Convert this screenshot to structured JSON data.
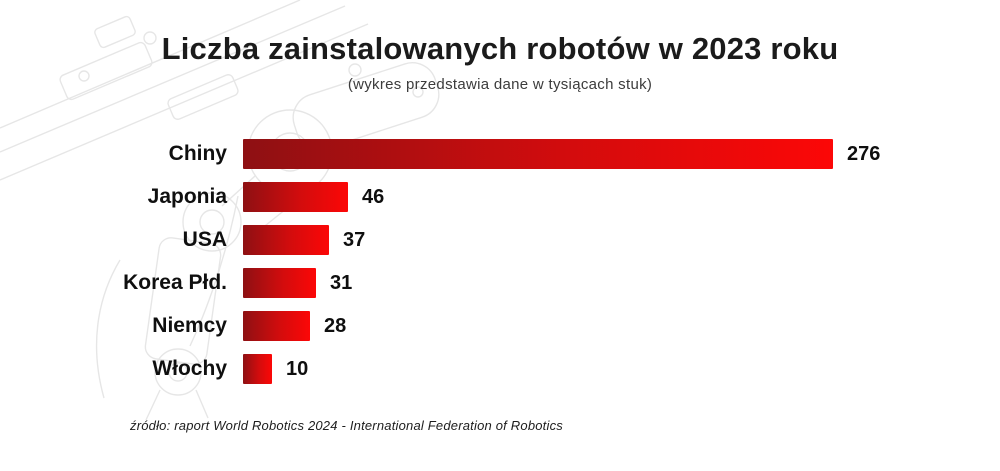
{
  "page": {
    "title": "Liczba zainstalowanych robotów w 2023 roku",
    "subtitle": "(wykres przedstawia dane w tysiącach stuk)",
    "source": "źródło: raport World Robotics 2024 - International Federation of Robotics"
  },
  "colors": {
    "bar_gradient_start": "#8e1013",
    "bar_gradient_mid": "#d30c0d",
    "bar_gradient_end": "#fc0707",
    "label_text": "#0f0f0f",
    "title_text": "#1b1b1b"
  },
  "chart_data": {
    "type": "bar",
    "orientation": "horizontal",
    "title": "Liczba zainstalowanych robotów w 2023 roku",
    "subtitle": "(wykres przedstawia dane w tysiącach stuk)",
    "categories": [
      "Chiny",
      "Japonia",
      "USA",
      "Korea Płd.",
      "Niemcy",
      "Włochy"
    ],
    "values": [
      276,
      46,
      37,
      31,
      28,
      10
    ],
    "value_labels": [
      276,
      46,
      37,
      31,
      28,
      10
    ],
    "xlim": [
      0,
      276
    ],
    "xlabel": "",
    "ylabel": "",
    "grid": false,
    "legend": false,
    "source": "źródło: raport World Robotics 2024 - International Federation of Robotics"
  }
}
